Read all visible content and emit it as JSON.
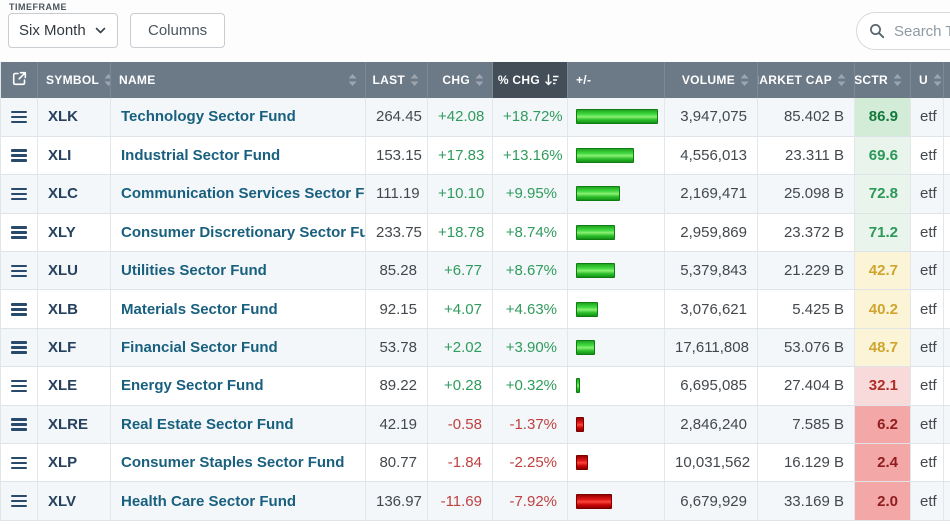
{
  "toolbar": {
    "timeframe_label": "TIMEFRAME",
    "timeframe_value": "Six Month",
    "columns_button": "Columns",
    "search_placeholder": "Search Tab"
  },
  "table": {
    "headers": {
      "symbol": "SYMBOL",
      "name": "NAME",
      "last": "LAST",
      "chg": "CHG",
      "pchg": "% CHG",
      "bar": "+/-",
      "volume": "VOLUME",
      "market_cap": "MARKET CAP",
      "sctr": "SCTR",
      "universe": "U"
    },
    "sorted_column": "pchg",
    "sort_direction": "desc",
    "rows": [
      {
        "symbol": "XLK",
        "name": "Technology Sector Fund",
        "last": "264.45",
        "chg": "+42.08",
        "pchg": "+18.72%",
        "pchg_value": 18.72,
        "volume": "3,947,075",
        "market_cap": "85.402 B",
        "sctr": "86.9",
        "sctr_value": 86.9,
        "u": "etf"
      },
      {
        "symbol": "XLI",
        "name": "Industrial Sector Fund",
        "last": "153.15",
        "chg": "+17.83",
        "pchg": "+13.16%",
        "pchg_value": 13.16,
        "volume": "4,556,013",
        "market_cap": "23.311 B",
        "sctr": "69.6",
        "sctr_value": 69.6,
        "u": "etf"
      },
      {
        "symbol": "XLC",
        "name": "Communication Services Sector Fund",
        "last": "111.19",
        "chg": "+10.10",
        "pchg": "+9.95%",
        "pchg_value": 9.95,
        "volume": "2,169,471",
        "market_cap": "25.098 B",
        "sctr": "72.8",
        "sctr_value": 72.8,
        "u": "etf"
      },
      {
        "symbol": "XLY",
        "name": "Consumer Discretionary Sector Fund",
        "last": "233.75",
        "chg": "+18.78",
        "pchg": "+8.74%",
        "pchg_value": 8.74,
        "volume": "2,959,869",
        "market_cap": "23.372 B",
        "sctr": "71.2",
        "sctr_value": 71.2,
        "u": "etf"
      },
      {
        "symbol": "XLU",
        "name": "Utilities Sector Fund",
        "last": "85.28",
        "chg": "+6.77",
        "pchg": "+8.67%",
        "pchg_value": 8.67,
        "volume": "5,379,843",
        "market_cap": "21.229 B",
        "sctr": "42.7",
        "sctr_value": 42.7,
        "u": "etf"
      },
      {
        "symbol": "XLB",
        "name": "Materials Sector Fund",
        "last": "92.15",
        "chg": "+4.07",
        "pchg": "+4.63%",
        "pchg_value": 4.63,
        "volume": "3,076,621",
        "market_cap": "5.425 B",
        "sctr": "40.2",
        "sctr_value": 40.2,
        "u": "etf"
      },
      {
        "symbol": "XLF",
        "name": "Financial Sector Fund",
        "last": "53.78",
        "chg": "+2.02",
        "pchg": "+3.90%",
        "pchg_value": 3.9,
        "volume": "17,611,808",
        "market_cap": "53.076 B",
        "sctr": "48.7",
        "sctr_value": 48.7,
        "u": "etf"
      },
      {
        "symbol": "XLE",
        "name": "Energy Sector Fund",
        "last": "89.22",
        "chg": "+0.28",
        "pchg": "+0.32%",
        "pchg_value": 0.32,
        "volume": "6,695,085",
        "market_cap": "27.404 B",
        "sctr": "32.1",
        "sctr_value": 32.1,
        "u": "etf"
      },
      {
        "symbol": "XLRE",
        "name": "Real Estate Sector Fund",
        "last": "42.19",
        "chg": "-0.58",
        "pchg": "-1.37%",
        "pchg_value": -1.37,
        "volume": "2,846,240",
        "market_cap": "7.585 B",
        "sctr": "6.2",
        "sctr_value": 6.2,
        "u": "etf"
      },
      {
        "symbol": "XLP",
        "name": "Consumer Staples Sector Fund",
        "last": "80.77",
        "chg": "-1.84",
        "pchg": "-2.25%",
        "pchg_value": -2.25,
        "volume": "10,031,562",
        "market_cap": "16.129 B",
        "sctr": "2.4",
        "sctr_value": 2.4,
        "u": "etf"
      },
      {
        "symbol": "XLV",
        "name": "Health Care Sector Fund",
        "last": "136.97",
        "chg": "-11.69",
        "pchg": "-7.92%",
        "pchg_value": -7.92,
        "volume": "6,679,929",
        "market_cap": "33.169 B",
        "sctr": "2.0",
        "sctr_value": 2.0,
        "u": "etf"
      }
    ]
  },
  "colors": {
    "header_bg": "#6c7987",
    "header_sorted_bg": "#434e59",
    "positive": "#2f9b5d",
    "negative": "#c04040",
    "bar_green": "#44dd44",
    "bar_red": "#e01616",
    "stripe": "#f3f7fa",
    "name_link": "#19607f",
    "symbol_text": "#26415e"
  }
}
